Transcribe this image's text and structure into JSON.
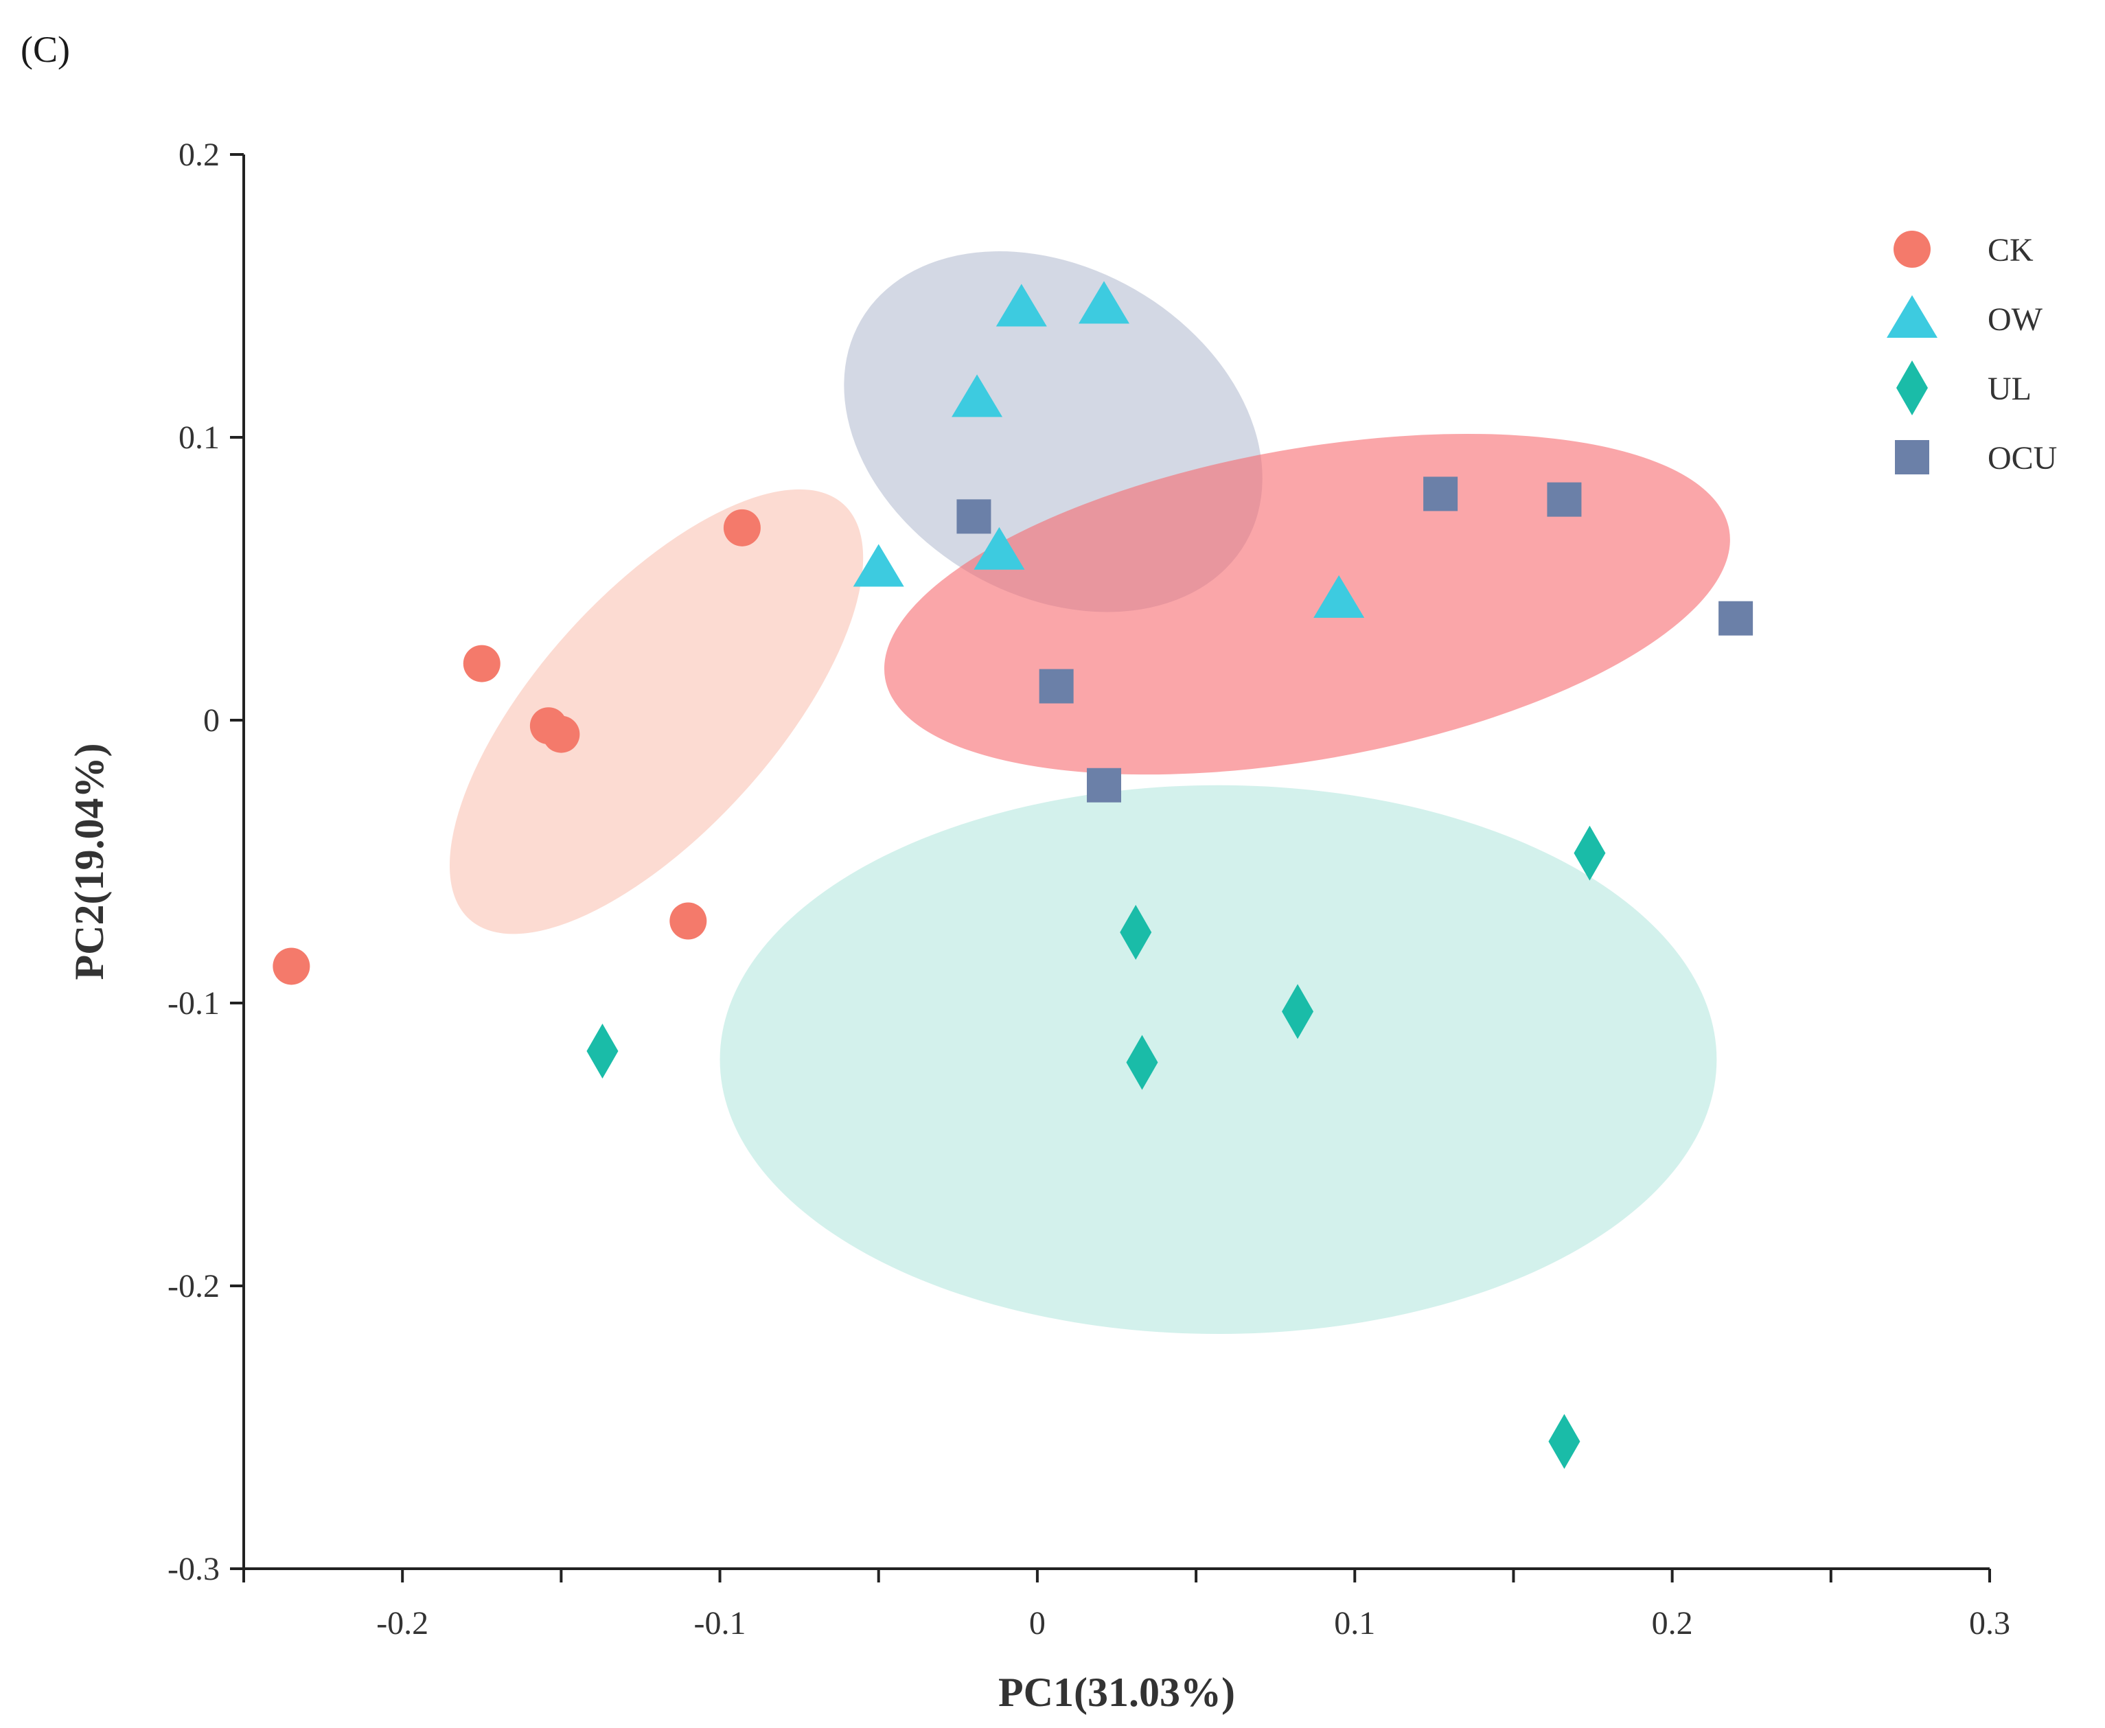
{
  "panel_label": "(C)",
  "chart_data": {
    "type": "scatter",
    "title": "",
    "xlabel": "PC1(31.03%)",
    "ylabel": "PC2(19.04%)",
    "xlim": [
      -0.25,
      0.3
    ],
    "ylim": [
      -0.3,
      0.2
    ],
    "xticks": [
      -0.2,
      -0.1,
      0,
      0.1,
      0.2,
      0.3
    ],
    "xtick_labels": [
      "-0.2",
      "-0.1",
      "0",
      "0.1",
      "0.2",
      "0.3"
    ],
    "yticks": [
      0.2,
      0.1,
      0,
      -0.1,
      -0.2,
      -0.3
    ],
    "ytick_labels": [
      "0.2",
      "0.1",
      "0",
      "-0.1",
      "-0.2",
      "-0.3"
    ],
    "grid": false,
    "legend_position": "top-right",
    "series": [
      {
        "name": "CK",
        "marker": "circle",
        "color": "#F47A6B",
        "points": [
          [
            -0.235,
            -0.087
          ],
          [
            -0.175,
            0.02
          ],
          [
            -0.154,
            -0.002
          ],
          [
            -0.15,
            -0.005
          ],
          [
            -0.11,
            -0.071
          ],
          [
            -0.093,
            0.068
          ]
        ],
        "ellipse": {
          "cx": -0.12,
          "cy": 0.003,
          "rx": 0.088,
          "ry": 0.042,
          "angle_deg": -48,
          "color": "#F9B7A6",
          "opacity": 0.5
        }
      },
      {
        "name": "OW",
        "marker": "triangle",
        "color": "#3DCBE0",
        "points": [
          [
            -0.005,
            0.146
          ],
          [
            0.021,
            0.147
          ],
          [
            -0.019,
            0.114
          ],
          [
            -0.05,
            0.054
          ],
          [
            -0.012,
            0.06
          ],
          [
            0.095,
            0.043
          ]
        ],
        "ellipse": {
          "cx": 0.005,
          "cy": 0.102,
          "rx": 0.07,
          "ry": 0.058,
          "angle_deg": 30,
          "color": "#A8B2CA",
          "opacity": 0.5
        }
      },
      {
        "name": "UL",
        "marker": "diamond",
        "color": "#1ABCA8",
        "points": [
          [
            -0.137,
            -0.117
          ],
          [
            0.031,
            -0.075
          ],
          [
            0.082,
            -0.103
          ],
          [
            0.033,
            -0.121
          ],
          [
            0.174,
            -0.047
          ],
          [
            0.166,
            -0.255
          ]
        ],
        "ellipse": {
          "cx": 0.057,
          "cy": -0.12,
          "rx": 0.157,
          "ry": 0.097,
          "angle_deg": 0,
          "color": "#A7E4DA",
          "opacity": 0.5
        }
      },
      {
        "name": "OCU",
        "marker": "square",
        "color": "#6B80A8",
        "points": [
          [
            -0.02,
            0.072
          ],
          [
            0.006,
            0.012
          ],
          [
            0.021,
            -0.023
          ],
          [
            0.127,
            0.08
          ],
          [
            0.166,
            0.078
          ],
          [
            0.22,
            0.036
          ]
        ],
        "ellipse": {
          "cx": 0.085,
          "cy": 0.041,
          "rx": 0.135,
          "ry": 0.055,
          "angle_deg": -10,
          "color": "#F76A6F",
          "opacity": 0.6
        }
      }
    ]
  }
}
